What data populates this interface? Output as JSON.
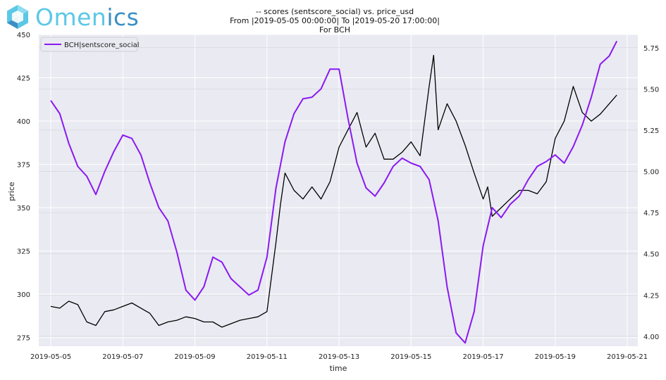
{
  "brand": {
    "name_part1": "Omen",
    "name_part2": "ics",
    "accent": "#5cc8e6",
    "accent2": "#3a8fc4"
  },
  "chart_data": {
    "type": "line",
    "title_lines": [
      "-- scores (sentscore_social) vs. price_usd",
      "From |2019-05-05 00:00:00| To |2019-05-20 17:00:00|",
      "For BCH"
    ],
    "xlabel": "time",
    "ylabel": "price",
    "x_ticks": [
      "2019-05-05",
      "2019-05-07",
      "2019-05-09",
      "2019-05-11",
      "2019-05-13",
      "2019-05-15",
      "2019-05-17",
      "2019-05-19",
      "2019-05-21"
    ],
    "xlim": [
      "2019-05-04T16:00",
      "2019-05-21T07:00"
    ],
    "ylim_left": [
      270,
      450
    ],
    "ylim_right": [
      3.94,
      5.83
    ],
    "y_ticks_left": [
      275,
      300,
      325,
      350,
      375,
      400,
      425,
      450
    ],
    "y_ticks_right": [
      "4.00",
      "4.25",
      "4.50",
      "4.75",
      "5.00",
      "5.25",
      "5.50",
      "5.75"
    ],
    "legend": {
      "position": "upper-left",
      "entries": [
        "BCH|sentscore_social"
      ]
    },
    "grid": true,
    "background": "#eaeaf2",
    "series": [
      {
        "name": "price_usd",
        "axis": "left",
        "color": "#000000",
        "x": [
          "2019-05-05T00:00",
          "2019-05-05T06:00",
          "2019-05-05T12:00",
          "2019-05-05T18:00",
          "2019-05-06T00:00",
          "2019-05-06T06:00",
          "2019-05-06T12:00",
          "2019-05-06T18:00",
          "2019-05-07T00:00",
          "2019-05-07T06:00",
          "2019-05-07T12:00",
          "2019-05-07T18:00",
          "2019-05-08T00:00",
          "2019-05-08T06:00",
          "2019-05-08T12:00",
          "2019-05-08T18:00",
          "2019-05-09T00:00",
          "2019-05-09T06:00",
          "2019-05-09T12:00",
          "2019-05-09T18:00",
          "2019-05-10T00:00",
          "2019-05-10T06:00",
          "2019-05-10T12:00",
          "2019-05-10T18:00",
          "2019-05-11T00:00",
          "2019-05-11T03:00",
          "2019-05-11T06:00",
          "2019-05-11T09:00",
          "2019-05-11T12:00",
          "2019-05-11T18:00",
          "2019-05-12T00:00",
          "2019-05-12T06:00",
          "2019-05-12T12:00",
          "2019-05-12T18:00",
          "2019-05-13T00:00",
          "2019-05-13T06:00",
          "2019-05-13T12:00",
          "2019-05-13T18:00",
          "2019-05-14T00:00",
          "2019-05-14T06:00",
          "2019-05-14T12:00",
          "2019-05-14T18:00",
          "2019-05-15T00:00",
          "2019-05-15T06:00",
          "2019-05-15T12:00",
          "2019-05-15T15:00",
          "2019-05-15T18:00",
          "2019-05-16T00:00",
          "2019-05-16T06:00",
          "2019-05-16T12:00",
          "2019-05-16T18:00",
          "2019-05-17T00:00",
          "2019-05-17T03:00",
          "2019-05-17T06:00",
          "2019-05-17T12:00",
          "2019-05-17T18:00",
          "2019-05-18T00:00",
          "2019-05-18T06:00",
          "2019-05-18T12:00",
          "2019-05-18T18:00",
          "2019-05-19T00:00",
          "2019-05-19T06:00",
          "2019-05-19T12:00",
          "2019-05-19T18:00",
          "2019-05-20T00:00",
          "2019-05-20T06:00",
          "2019-05-20T12:00",
          "2019-05-20T17:00"
        ],
        "values": [
          293,
          292,
          296,
          294,
          284,
          282,
          290,
          291,
          293,
          295,
          292,
          289,
          282,
          284,
          285,
          287,
          286,
          284,
          284,
          281,
          283,
          285,
          286,
          287,
          290,
          310,
          330,
          352,
          370,
          360,
          355,
          362,
          355,
          365,
          385,
          395,
          405,
          385,
          393,
          378,
          378,
          382,
          388,
          380,
          420,
          438,
          395,
          410,
          400,
          386,
          370,
          355,
          362,
          345,
          350,
          355,
          360,
          360,
          358,
          365,
          390,
          400,
          420,
          405,
          400,
          404,
          410,
          415
        ]
      },
      {
        "name": "BCH|sentscore_social",
        "axis": "right",
        "color": "#8a19f2",
        "x": [
          "2019-05-05T00:00",
          "2019-05-05T06:00",
          "2019-05-05T12:00",
          "2019-05-05T18:00",
          "2019-05-06T00:00",
          "2019-05-06T06:00",
          "2019-05-06T12:00",
          "2019-05-06T18:00",
          "2019-05-07T00:00",
          "2019-05-07T06:00",
          "2019-05-07T12:00",
          "2019-05-07T18:00",
          "2019-05-08T00:00",
          "2019-05-08T06:00",
          "2019-05-08T12:00",
          "2019-05-08T18:00",
          "2019-05-09T00:00",
          "2019-05-09T06:00",
          "2019-05-09T12:00",
          "2019-05-09T18:00",
          "2019-05-10T00:00",
          "2019-05-10T06:00",
          "2019-05-10T12:00",
          "2019-05-10T18:00",
          "2019-05-11T00:00",
          "2019-05-11T06:00",
          "2019-05-11T12:00",
          "2019-05-11T18:00",
          "2019-05-12T00:00",
          "2019-05-12T06:00",
          "2019-05-12T12:00",
          "2019-05-12T18:00",
          "2019-05-13T00:00",
          "2019-05-13T06:00",
          "2019-05-13T12:00",
          "2019-05-13T18:00",
          "2019-05-14T00:00",
          "2019-05-14T06:00",
          "2019-05-14T12:00",
          "2019-05-14T18:00",
          "2019-05-15T00:00",
          "2019-05-15T06:00",
          "2019-05-15T12:00",
          "2019-05-15T18:00",
          "2019-05-16T00:00",
          "2019-05-16T06:00",
          "2019-05-16T12:00",
          "2019-05-16T18:00",
          "2019-05-17T00:00",
          "2019-05-17T06:00",
          "2019-05-17T12:00",
          "2019-05-17T18:00",
          "2019-05-18T00:00",
          "2019-05-18T06:00",
          "2019-05-18T12:00",
          "2019-05-18T18:00",
          "2019-05-19T00:00",
          "2019-05-19T06:00",
          "2019-05-19T12:00",
          "2019-05-19T18:00",
          "2019-05-20T00:00",
          "2019-05-20T06:00",
          "2019-05-20T12:00",
          "2019-05-20T17:00"
        ],
        "values": [
          5.43,
          5.35,
          5.17,
          5.03,
          4.97,
          4.86,
          5.0,
          5.12,
          5.22,
          5.2,
          5.1,
          4.93,
          4.78,
          4.7,
          4.51,
          4.28,
          4.22,
          4.3,
          4.48,
          4.45,
          4.35,
          4.3,
          4.25,
          4.28,
          4.48,
          4.9,
          5.18,
          5.35,
          5.44,
          5.45,
          5.5,
          5.62,
          5.62,
          5.32,
          5.05,
          4.9,
          4.85,
          4.93,
          5.03,
          5.08,
          5.05,
          5.03,
          4.95,
          4.7,
          4.3,
          4.02,
          3.96,
          4.15,
          4.55,
          4.78,
          4.72,
          4.8,
          4.85,
          4.95,
          5.03,
          5.06,
          5.1,
          5.05,
          5.15,
          5.28,
          5.45,
          5.65,
          5.7,
          5.79
        ]
      }
    ]
  }
}
